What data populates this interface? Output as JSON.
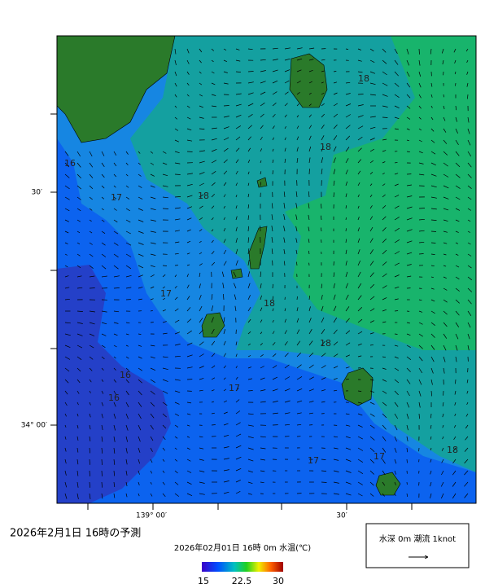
{
  "map": {
    "lat_labels": [
      "30′",
      "34° 00′"
    ],
    "lon_labels": [
      "139° 00′",
      "30′"
    ],
    "contour_labels": [
      "16",
      "17",
      "18",
      "18",
      "18",
      "17",
      "18",
      "18",
      "16",
      "16",
      "17",
      "17",
      "17",
      "18"
    ]
  },
  "caption": "2026年2月1日 16時の予測",
  "colorbar": {
    "title": "2026年02月01日 16時 0m 水温(℃)",
    "labels": [
      "15",
      "22.5",
      "30"
    ]
  },
  "legend": "水深 0m 潮流 1knot"
}
